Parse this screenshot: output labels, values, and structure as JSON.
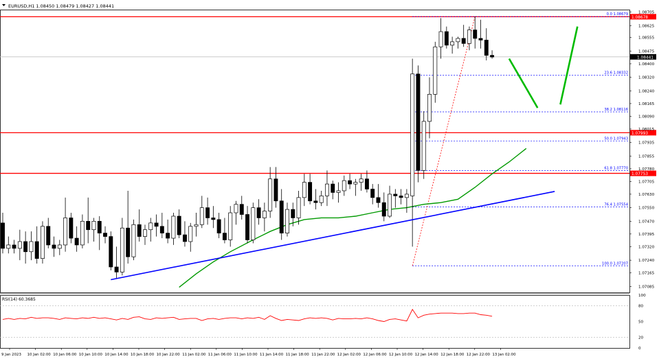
{
  "header": {
    "symbol_line": "EURUSD,H1  1.08450 1.08479 1.08427 1.08441"
  },
  "chart_data": [
    {
      "type": "candlestick",
      "symbol": "EURUSD",
      "timeframe": "H1",
      "ohlc_header": {
        "open": 1.0845,
        "high": 1.08479,
        "low": 1.08427,
        "close": 1.08441
      },
      "current_price_label": "1.08441",
      "current_price": 1.08441,
      "ylim": [
        1.0705,
        1.0872
      ],
      "y_ticks": [
        "1.08705",
        "1.08625",
        "1.08555",
        "1.08475",
        "1.08400",
        "1.08320",
        "1.08240",
        "1.08165",
        "1.08090",
        "1.08015",
        "1.07935",
        "1.07855",
        "1.07780",
        "1.07705",
        "1.07630",
        "1.07550",
        "1.07470",
        "1.07395",
        "1.07320",
        "1.07240",
        "1.07165",
        "1.07085"
      ],
      "x_ticks": [
        "9 Jan 2023",
        "10 Jan 02:00",
        "10 Jan 06:00",
        "10 Jan 10:00",
        "10 Jan 14:00",
        "10 Jan 18:00",
        "10 Jan 22:00",
        "11 Jan 02:00",
        "11 Jan 06:00",
        "11 Jan 10:00",
        "11 Jan 14:00",
        "11 Jan 18:00",
        "11 Jan 22:00",
        "12 Jan 02:00",
        "12 Jan 06:00",
        "12 Jan 10:00",
        "12 Jan 14:00",
        "12 Jan 18:00",
        "12 Jan 22:00",
        "13 Jan 02:00"
      ],
      "candles": [
        [
          1.0746,
          1.0752,
          1.0728,
          1.0731
        ],
        [
          1.0731,
          1.0738,
          1.0728,
          1.0733
        ],
        [
          1.0733,
          1.0736,
          1.0728,
          1.0731
        ],
        [
          1.0731,
          1.0742,
          1.0724,
          1.0735
        ],
        [
          1.0735,
          1.0741,
          1.0722,
          1.0729
        ],
        [
          1.0729,
          1.0741,
          1.0724,
          1.0735
        ],
        [
          1.0735,
          1.0744,
          1.0722,
          1.0725
        ],
        [
          1.0725,
          1.0747,
          1.0722,
          1.0744
        ],
        [
          1.0744,
          1.0749,
          1.0731,
          1.0733
        ],
        [
          1.0733,
          1.0738,
          1.0726,
          1.0731
        ],
        [
          1.0731,
          1.0736,
          1.0727,
          1.0733
        ],
        [
          1.0733,
          1.0761,
          1.0729,
          1.0749
        ],
        [
          1.0749,
          1.0752,
          1.0734,
          1.0737
        ],
        [
          1.0737,
          1.0744,
          1.0729,
          1.0733
        ],
        [
          1.0733,
          1.0751,
          1.0731,
          1.0747
        ],
        [
          1.0747,
          1.0761,
          1.0734,
          1.0742
        ],
        [
          1.0742,
          1.0749,
          1.0735,
          1.0747
        ],
        [
          1.0747,
          1.075,
          1.073,
          1.074
        ],
        [
          1.074,
          1.0744,
          1.0734,
          1.0738
        ],
        [
          1.0738,
          1.0741,
          1.0718,
          1.072
        ],
        [
          1.072,
          1.0732,
          1.0713,
          1.0717
        ],
        [
          1.0717,
          1.0749,
          1.0715,
          1.0743
        ],
        [
          1.0743,
          1.0765,
          1.0722,
          1.0726
        ],
        [
          1.0726,
          1.0748,
          1.0724,
          1.0745
        ],
        [
          1.0745,
          1.0754,
          1.0735,
          1.0738
        ],
        [
          1.0738,
          1.0745,
          1.0733,
          1.0742
        ],
        [
          1.0742,
          1.0749,
          1.0735,
          1.0746
        ],
        [
          1.0746,
          1.0751,
          1.0738,
          1.0744
        ],
        [
          1.0744,
          1.0752,
          1.0737,
          1.074
        ],
        [
          1.074,
          1.0748,
          1.0734,
          1.0737
        ],
        [
          1.0737,
          1.0752,
          1.0733,
          1.075
        ],
        [
          1.075,
          1.0754,
          1.0737,
          1.0739
        ],
        [
          1.0739,
          1.0747,
          1.0732,
          1.0735
        ],
        [
          1.0735,
          1.0746,
          1.0729,
          1.0744
        ],
        [
          1.0744,
          1.0752,
          1.0738,
          1.0745
        ],
        [
          1.0745,
          1.0762,
          1.0743,
          1.0755
        ],
        [
          1.0755,
          1.0761,
          1.0745,
          1.0749
        ],
        [
          1.0749,
          1.0756,
          1.0743,
          1.0748
        ],
        [
          1.0748,
          1.0752,
          1.0737,
          1.074
        ],
        [
          1.074,
          1.0749,
          1.0734,
          1.0736
        ],
        [
          1.0736,
          1.0756,
          1.0732,
          1.0752
        ],
        [
          1.0752,
          1.0759,
          1.0745,
          1.0757
        ],
        [
          1.0757,
          1.0762,
          1.0748,
          1.0751
        ],
        [
          1.0751,
          1.0756,
          1.0734,
          1.0736
        ],
        [
          1.0736,
          1.0758,
          1.0734,
          1.0755
        ],
        [
          1.0755,
          1.076,
          1.0745,
          1.0749
        ],
        [
          1.0749,
          1.0758,
          1.0741,
          1.0753
        ],
        [
          1.0753,
          1.0779,
          1.0749,
          1.0772
        ],
        [
          1.0772,
          1.0779,
          1.0755,
          1.0759
        ],
        [
          1.0759,
          1.0766,
          1.0736,
          1.074
        ],
        [
          1.074,
          1.0758,
          1.0738,
          1.0754
        ],
        [
          1.0754,
          1.0758,
          1.0744,
          1.0749
        ],
        [
          1.0749,
          1.0765,
          1.0745,
          1.0761
        ],
        [
          1.0761,
          1.0775,
          1.0756,
          1.077
        ],
        [
          1.077,
          1.0775,
          1.0757,
          1.0759
        ],
        [
          1.0759,
          1.0766,
          1.0754,
          1.0758
        ],
        [
          1.0758,
          1.0765,
          1.0756,
          1.0762
        ],
        [
          1.0762,
          1.0777,
          1.0756,
          1.0769
        ],
        [
          1.0769,
          1.0771,
          1.076,
          1.0764
        ],
        [
          1.0764,
          1.077,
          1.0758,
          1.0765
        ],
        [
          1.0765,
          1.0774,
          1.0762,
          1.0771
        ],
        [
          1.0771,
          1.0775,
          1.0766,
          1.0769
        ],
        [
          1.0769,
          1.0772,
          1.0762,
          1.077
        ],
        [
          1.077,
          1.0775,
          1.0765,
          1.0772
        ],
        [
          1.0772,
          1.0777,
          1.0764,
          1.0766
        ],
        [
          1.0766,
          1.0769,
          1.0757,
          1.0761
        ],
        [
          1.0761,
          1.0769,
          1.0755,
          1.0758
        ],
        [
          1.0758,
          1.0764,
          1.0747,
          1.075
        ],
        [
          1.075,
          1.0768,
          1.0749,
          1.0763
        ],
        [
          1.0763,
          1.0766,
          1.0755,
          1.0762
        ],
        [
          1.0762,
          1.0766,
          1.0757,
          1.0761
        ],
        [
          1.0761,
          1.0766,
          1.0752,
          1.0763
        ],
        [
          1.0762,
          1.0843,
          1.0732,
          1.0834
        ],
        [
          1.0834,
          1.0839,
          1.077,
          1.0777
        ],
        [
          1.0777,
          1.0812,
          1.0772,
          1.0806
        ],
        [
          1.0806,
          1.0832,
          1.0796,
          1.0822
        ],
        [
          1.0822,
          1.0853,
          1.0817,
          1.085
        ],
        [
          1.085,
          1.0867,
          1.0843,
          1.0859
        ],
        [
          1.0859,
          1.0862,
          1.0849,
          1.0851
        ],
        [
          1.0851,
          1.0856,
          1.0846,
          1.0853
        ],
        [
          1.0853,
          1.0856,
          1.0849,
          1.0855
        ],
        [
          1.0855,
          1.0863,
          1.085,
          1.0852
        ],
        [
          1.0852,
          1.0862,
          1.0848,
          1.086
        ],
        [
          1.086,
          1.0868,
          1.0849,
          1.0855
        ],
        [
          1.0855,
          1.0866,
          1.0849,
          1.0854
        ],
        [
          1.0854,
          1.0861,
          1.0842,
          1.0845
        ],
        [
          1.0845,
          1.0848,
          1.0843,
          1.0844
        ]
      ],
      "candle_colors": {
        "up": "#ffffff",
        "down": "#000000",
        "outline": "#000000"
      },
      "grid": false,
      "horizontal_levels": [
        {
          "label": "1.08678",
          "value": 1.08678,
          "color": "#ff0000"
        },
        {
          "label": "1.07993",
          "value": 1.07993,
          "color": "#ff0000"
        },
        {
          "label": "1.07753",
          "value": 1.07753,
          "color": "#ff0000"
        }
      ],
      "fibonacci": {
        "color": "#0000ff",
        "from": {
          "value": 1.07207,
          "candle_index": 72
        },
        "to": {
          "value": 1.08679,
          "candle_index": 83
        },
        "levels": [
          {
            "label": "0.0 1.08679",
            "value": 1.08679
          },
          {
            "label": "23.6 1.08332",
            "value": 1.08332
          },
          {
            "label": "38.2 1.08116",
            "value": 1.08116
          },
          {
            "label": "50.0 1.07943",
            "value": 1.07943
          },
          {
            "label": "61.8 1.07770",
            "value": 1.0777
          },
          {
            "label": "76.4 1.07554",
            "value": 1.07554
          },
          {
            "label": "100.0 1.07207",
            "value": 1.07207
          }
        ]
      },
      "trendline": {
        "color": "#0000ff",
        "points": [
          [
            19,
            1.07125
          ],
          [
            97,
            1.07646
          ]
        ]
      },
      "moving_average": {
        "color": "#009900",
        "values": [
          [
            31,
            1.0708
          ],
          [
            34,
            1.0716
          ],
          [
            37,
            1.0723
          ],
          [
            40,
            1.0729
          ],
          [
            44,
            1.0736
          ],
          [
            47,
            1.0741
          ],
          [
            50,
            1.0745
          ],
          [
            53,
            1.0748
          ],
          [
            56,
            1.0749
          ],
          [
            59,
            1.0749
          ],
          [
            62,
            1.075
          ],
          [
            65,
            1.0752
          ],
          [
            68,
            1.0754
          ],
          [
            71,
            1.0755
          ],
          [
            74,
            1.0757
          ],
          [
            77,
            1.0758
          ],
          [
            80,
            1.076
          ],
          [
            83,
            1.0767
          ],
          [
            86,
            1.0775
          ],
          [
            89,
            1.0782
          ],
          [
            92,
            1.079
          ]
        ]
      },
      "projection": {
        "color": "#00bb00",
        "points": [
          [
            89,
            1.0843
          ],
          [
            94,
            1.0814
          ],
          [
            98,
            1.0816
          ],
          [
            101,
            1.0862
          ]
        ]
      }
    },
    {
      "type": "line",
      "indicator": "RSI",
      "label": "RSI(14) 60.3685",
      "ylim": [
        0,
        100
      ],
      "y_ticks": [
        100,
        80,
        50,
        20,
        0
      ],
      "levels": [
        80,
        20
      ],
      "color": "#ff0000",
      "values": [
        54,
        56,
        54,
        56,
        55,
        58,
        56,
        57,
        57,
        56,
        54,
        57,
        56,
        55,
        57,
        56,
        58,
        56,
        57,
        55,
        53,
        56,
        54,
        58,
        59,
        55,
        54,
        57,
        56,
        57,
        58,
        54,
        55,
        56,
        56,
        52,
        55,
        56,
        54,
        56,
        57,
        57,
        55,
        57,
        56,
        58,
        54,
        61,
        56,
        52,
        54,
        53,
        52,
        55,
        57,
        56,
        57,
        56,
        53,
        56,
        55,
        55,
        56,
        55,
        57,
        55,
        52,
        50,
        54,
        55,
        53,
        51,
        73,
        57,
        62,
        64,
        65,
        66,
        66,
        66,
        65,
        65,
        66,
        66,
        63,
        62,
        60
      ]
    }
  ]
}
